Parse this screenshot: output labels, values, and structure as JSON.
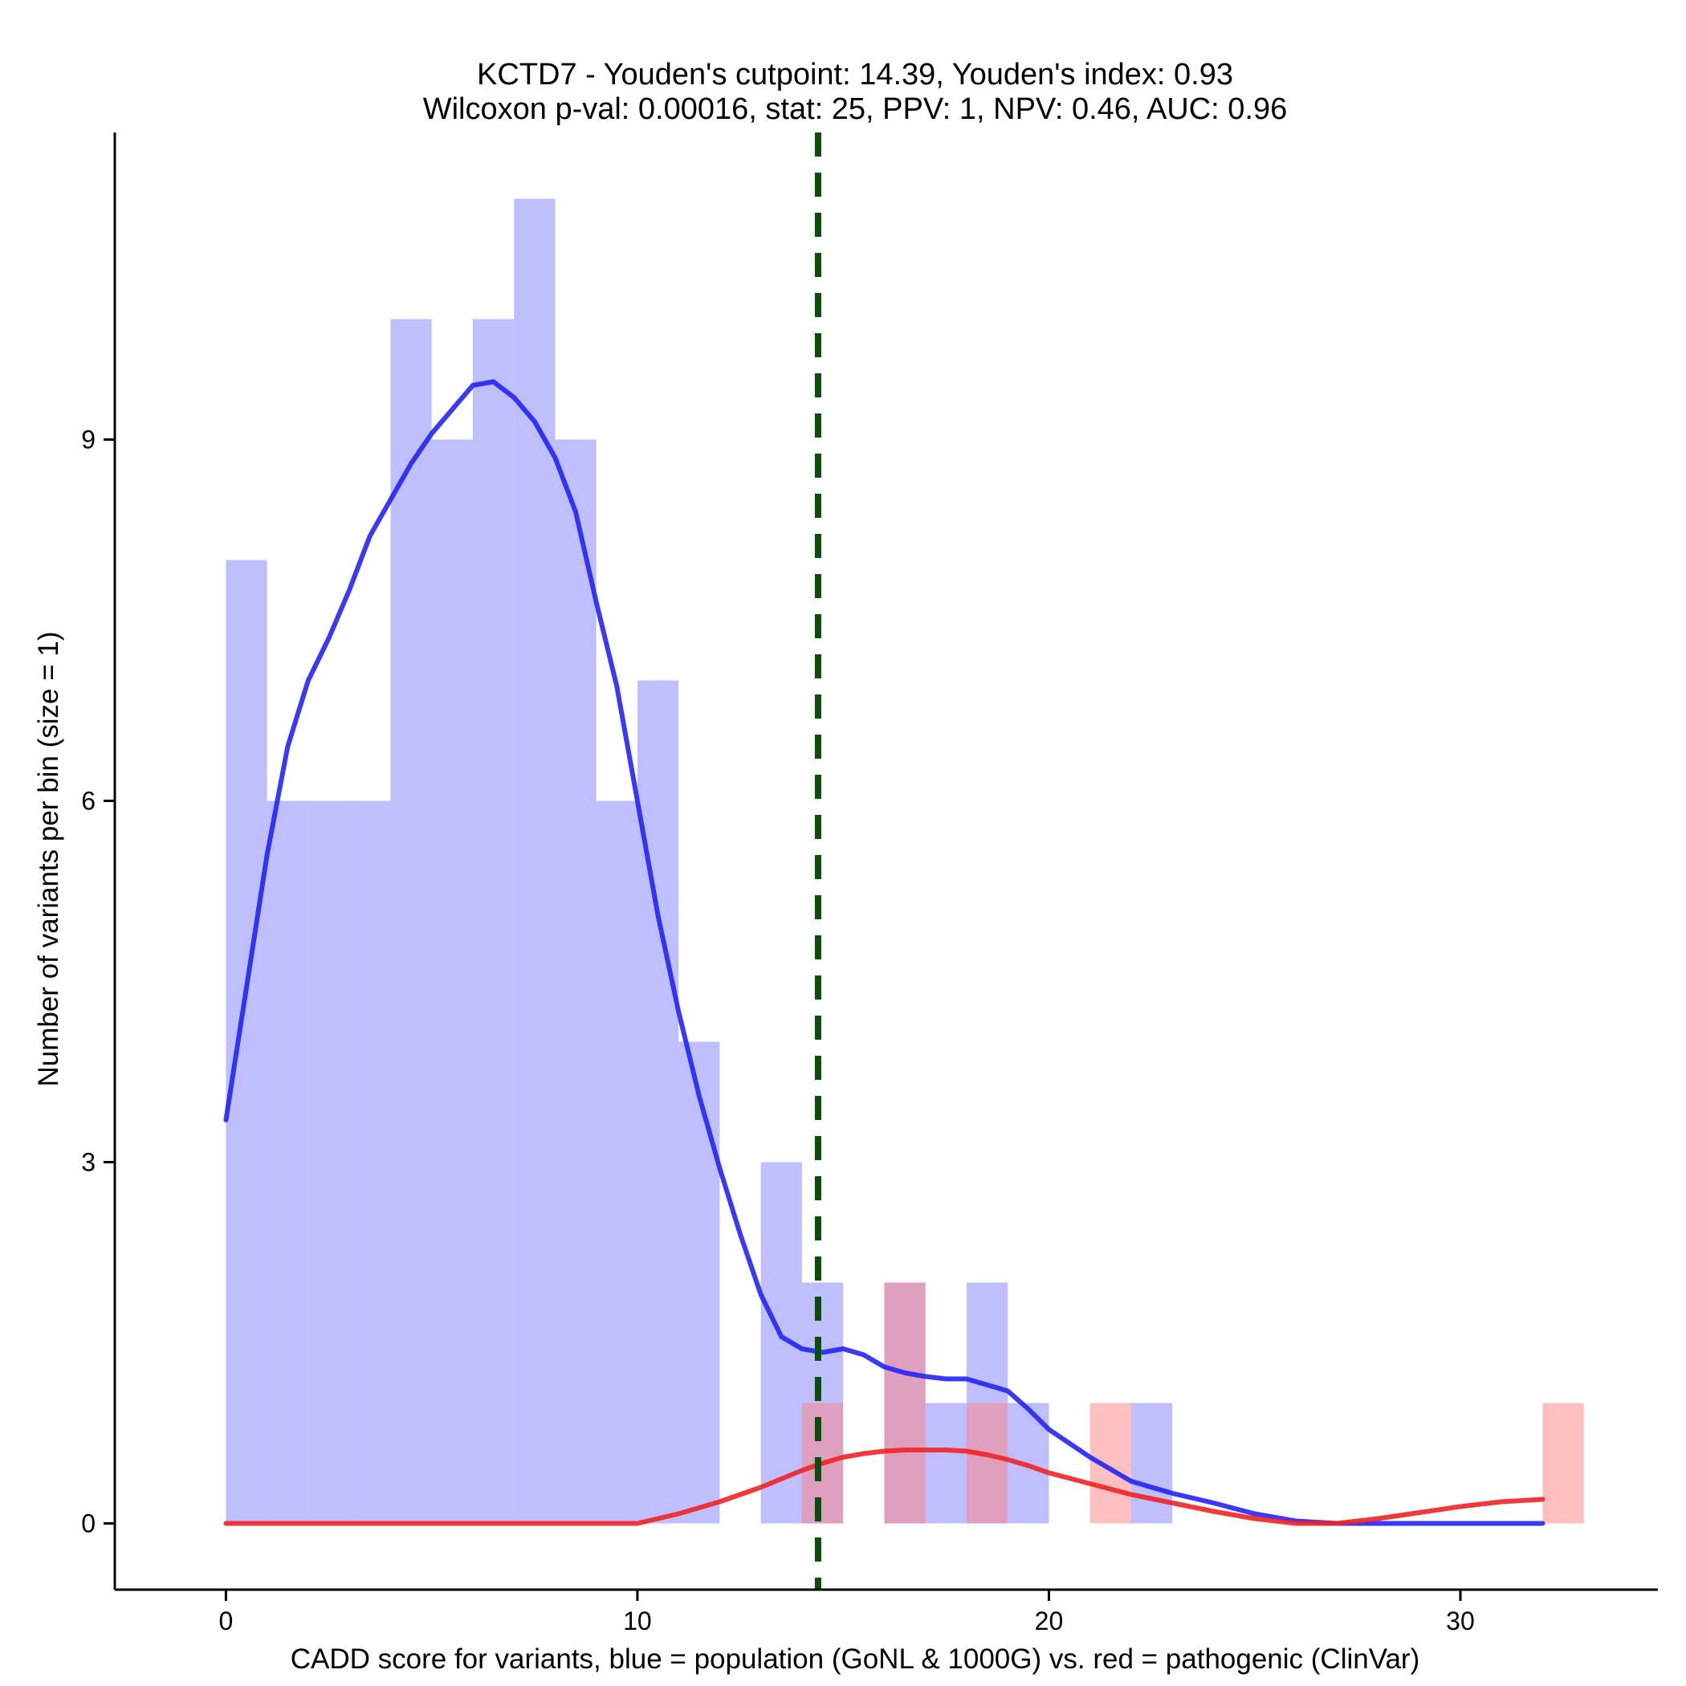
{
  "chart_data": {
    "type": "histogram",
    "title_line1": "KCTD7 - Youden's cutpoint: 14.39, Youden's index: 0.93",
    "title_line2": "Wilcoxon p-val: 0.00016, stat: 25, PPV: 1, NPV: 0.46, AUC: 0.96",
    "xlabel": "CADD score for variants, blue = population (GoNL & 1000G) vs. red = pathogenic (ClinVar)",
    "ylabel": "Number of variants per bin (size = 1)",
    "xlim": [
      -2.7,
      34.8
    ],
    "ylim": [
      -0.55,
      11.55
    ],
    "x_ticks": [
      0,
      10,
      20,
      30
    ],
    "y_ticks": [
      0,
      3,
      6,
      9
    ],
    "bin_width": 1,
    "cutpoint": 14.39,
    "series": [
      {
        "name": "population (GoNL & 1000G)",
        "color": "#8080ff",
        "opacity": 0.5,
        "bins": [
          [
            0,
            8
          ],
          [
            1,
            6
          ],
          [
            2,
            6
          ],
          [
            3,
            6
          ],
          [
            4,
            10
          ],
          [
            5,
            9
          ],
          [
            6,
            10
          ],
          [
            7,
            11
          ],
          [
            8,
            9
          ],
          [
            9,
            6
          ],
          [
            10,
            7
          ],
          [
            11,
            4
          ],
          [
            13,
            3
          ],
          [
            14,
            2
          ],
          [
            16,
            2
          ],
          [
            17,
            1
          ],
          [
            18,
            2
          ],
          [
            19,
            1
          ],
          [
            22,
            1
          ]
        ]
      },
      {
        "name": "pathogenic (ClinVar)",
        "color": "#ff8080",
        "opacity": 0.5,
        "bins": [
          [
            14,
            1
          ],
          [
            16,
            2
          ],
          [
            18,
            1
          ],
          [
            21,
            1
          ],
          [
            32,
            1
          ]
        ]
      }
    ],
    "density_curves": [
      {
        "name": "population density",
        "color": "#2424f5",
        "x": [
          0,
          0.5,
          1,
          1.5,
          2,
          2.5,
          3,
          3.5,
          4,
          4.5,
          5,
          5.5,
          6,
          6.5,
          7,
          7.5,
          8,
          8.5,
          9,
          9.5,
          10,
          10.5,
          11,
          11.5,
          12,
          12.5,
          13,
          13.5,
          14,
          14.5,
          15,
          15.5,
          16,
          16.5,
          17,
          17.5,
          18,
          18.5,
          19,
          19.5,
          20,
          21,
          22,
          23,
          24,
          25,
          26,
          27,
          28,
          29,
          30,
          31,
          32
        ],
        "y": [
          3.35,
          4.45,
          5.55,
          6.45,
          7.0,
          7.35,
          7.75,
          8.2,
          8.5,
          8.8,
          9.05,
          9.25,
          9.45,
          9.48,
          9.35,
          9.15,
          8.85,
          8.4,
          7.65,
          6.95,
          6.0,
          5.05,
          4.25,
          3.55,
          2.95,
          2.4,
          1.9,
          1.55,
          1.45,
          1.42,
          1.45,
          1.4,
          1.3,
          1.25,
          1.22,
          1.2,
          1.2,
          1.15,
          1.1,
          0.95,
          0.78,
          0.55,
          0.35,
          0.25,
          0.17,
          0.08,
          0.02,
          0.0,
          0.0,
          0.0,
          0.0,
          0.0,
          0.0
        ]
      },
      {
        "name": "pathogenic density",
        "color": "#f02424",
        "x": [
          0,
          2,
          4,
          6,
          8,
          10,
          10.5,
          11,
          11.5,
          12,
          12.5,
          13,
          13.5,
          14,
          14.5,
          15,
          15.5,
          16,
          16.5,
          17,
          17.5,
          18,
          18.5,
          19,
          19.5,
          20,
          21,
          22,
          23,
          24,
          25,
          26,
          27,
          28,
          29,
          30,
          31,
          32
        ],
        "y": [
          0,
          0,
          0,
          0,
          0,
          0,
          0.04,
          0.08,
          0.13,
          0.18,
          0.24,
          0.3,
          0.37,
          0.44,
          0.5,
          0.55,
          0.58,
          0.6,
          0.61,
          0.61,
          0.61,
          0.6,
          0.57,
          0.53,
          0.48,
          0.42,
          0.33,
          0.24,
          0.17,
          0.1,
          0.04,
          0.0,
          0.0,
          0.04,
          0.09,
          0.14,
          0.18,
          0.2
        ]
      }
    ]
  }
}
